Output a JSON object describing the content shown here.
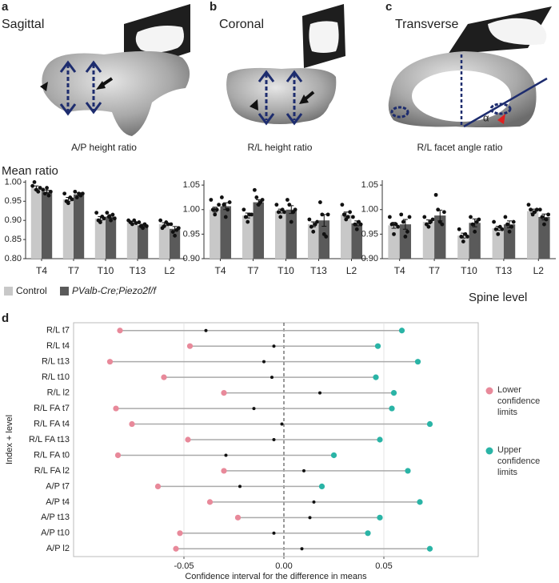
{
  "chart_data": [
    {
      "type": "bar",
      "panel_label": "a",
      "view": "Sagittal",
      "caption": "A/P height ratio",
      "ylabel": "Mean ratio",
      "categories": [
        "T4",
        "T7",
        "T10",
        "T13",
        "L2"
      ],
      "ylim": [
        0.8,
        1.005
      ],
      "yticks": [
        {
          "value": 0.8,
          "label": "0.80"
        },
        {
          "value": 0.85,
          "label": "0.85"
        },
        {
          "value": 0.9,
          "label": "0.90"
        },
        {
          "value": 0.95,
          "label": "0.95"
        },
        {
          "value": 1.0,
          "label": "1.00"
        }
      ],
      "series": [
        {
          "name": "Control",
          "color": "#c8c8c8",
          "values": [
            0.985,
            0.955,
            0.905,
            0.895,
            0.89
          ],
          "errors": [
            0.005,
            0.005,
            0.005,
            0.003,
            0.004
          ],
          "points": [
            [
              0.99,
              1.0,
              0.98,
              0.975,
              0.985
            ],
            [
              0.97,
              0.95,
              0.945,
              0.96,
              0.955
            ],
            [
              0.92,
              0.9,
              0.895,
              0.91,
              0.905
            ],
            [
              0.9,
              0.895,
              0.89,
              0.9,
              0.893
            ],
            [
              0.9,
              0.88,
              0.885,
              0.895,
              0.89
            ]
          ]
        },
        {
          "name": "PValb-Cre;Piezo2f/f",
          "color": "#5a5a5a",
          "values": [
            0.975,
            0.968,
            0.91,
            0.887,
            0.878
          ],
          "errors": [
            0.004,
            0.004,
            0.005,
            0.003,
            0.006
          ],
          "points": [
            [
              0.98,
              0.97,
              0.985,
              0.965,
              0.975
            ],
            [
              0.975,
              0.96,
              0.97,
              0.965,
              0.97
            ],
            [
              0.92,
              0.91,
              0.9,
              0.915,
              0.905
            ],
            [
              0.895,
              0.885,
              0.88,
              0.89,
              0.885
            ],
            [
              0.89,
              0.87,
              0.86,
              0.875,
              0.88
            ]
          ]
        }
      ]
    },
    {
      "type": "bar",
      "panel_label": "b",
      "view": "Coronal",
      "caption": "R/L height ratio",
      "categories": [
        "T4",
        "T7",
        "T10",
        "T13",
        "L2"
      ],
      "ylim": [
        0.9,
        1.06
      ],
      "yticks": [
        {
          "value": 0.9,
          "label": "0.90"
        },
        {
          "value": 0.95,
          "label": "0.95"
        },
        {
          "value": 1.0,
          "label": "1.00"
        },
        {
          "value": 1.05,
          "label": "1.05"
        }
      ],
      "series": [
        {
          "color": "#c8c8c8",
          "values": [
            1.0,
            0.988,
            0.997,
            0.97,
            0.99
          ],
          "errors": [
            0.005,
            0.005,
            0.004,
            0.005,
            0.005
          ],
          "points": [
            [
              1.02,
              1.0,
              0.99,
              1.0,
              1.01
            ],
            [
              1.0,
              0.985,
              0.975,
              0.99,
              0.99
            ],
            [
              1.01,
              0.995,
              0.985,
              1.0,
              0.995
            ],
            [
              0.98,
              0.965,
              0.955,
              0.97,
              0.975
            ],
            [
              1.01,
              0.99,
              0.98,
              0.985,
              0.995
            ]
          ]
        },
        {
          "color": "#5a5a5a",
          "values": [
            1.007,
            1.015,
            1.0,
            0.978,
            0.972
          ],
          "errors": [
            0.007,
            0.005,
            0.008,
            0.012,
            0.005
          ],
          "points": [
            [
              1.025,
              1.01,
              0.985,
              1.0,
              1.015
            ],
            [
              1.04,
              1.025,
              1.01,
              1.015,
              1.02
            ],
            [
              1.02,
              1.01,
              0.975,
              0.995,
              1.0
            ],
            [
              1.015,
              0.99,
              0.95,
              0.945,
              0.99
            ],
            [
              0.985,
              0.97,
              0.96,
              0.975,
              0.97
            ]
          ]
        }
      ]
    },
    {
      "type": "bar",
      "panel_label": "c",
      "view": "Transverse",
      "caption": "R/L facet angle ratio",
      "xlabel": "Spine level",
      "categories": [
        "T4",
        "T7",
        "T10",
        "T13",
        "L2"
      ],
      "ylim": [
        0.9,
        1.06
      ],
      "yticks": [
        {
          "value": 0.9,
          "label": "0.90"
        },
        {
          "value": 0.95,
          "label": "0.95"
        },
        {
          "value": 1.0,
          "label": "1.00"
        },
        {
          "value": 1.05,
          "label": "1.05"
        }
      ],
      "series": [
        {
          "color": "#c8c8c8",
          "values": [
            0.968,
            0.975,
            0.947,
            0.962,
            0.997
          ],
          "errors": [
            0.006,
            0.004,
            0.005,
            0.004,
            0.004
          ],
          "points": [
            [
              0.985,
              0.97,
              0.95,
              0.97,
              0.965
            ],
            [
              0.985,
              0.97,
              0.965,
              0.975,
              0.98
            ],
            [
              0.96,
              0.945,
              0.935,
              0.95,
              0.945
            ],
            [
              0.975,
              0.96,
              0.95,
              0.965,
              0.96
            ],
            [
              1.01,
              1.0,
              0.99,
              0.995,
              1.0
            ]
          ]
        },
        {
          "color": "#5a5a5a",
          "values": [
            0.97,
            0.988,
            0.973,
            0.97,
            0.985
          ],
          "errors": [
            0.01,
            0.011,
            0.008,
            0.007,
            0.006
          ],
          "points": [
            [
              0.99,
              0.975,
              0.945,
              0.955,
              0.985
            ],
            [
              1.03,
              1.0,
              0.975,
              0.97,
              0.995
            ],
            [
              0.985,
              0.97,
              0.955,
              0.975,
              0.98
            ],
            [
              0.985,
              0.97,
              0.955,
              0.965,
              0.975
            ],
            [
              1.0,
              0.985,
              0.97,
              0.98,
              0.99
            ]
          ]
        }
      ]
    },
    {
      "type": "dumbbell",
      "panel_label": "d",
      "xlabel": "Confidence interval for the difference in means",
      "ylabel": "Index + level",
      "categories": [
        "R/L t7",
        "R/L t4",
        "R/L t13",
        "R/L t10",
        "R/L l2",
        "R/L FA t7",
        "R/L FA t4",
        "R/L FA t13",
        "R/L FA t0",
        "R/L FA l2",
        "A/P t7",
        "A/P t4",
        "A/P t13",
        "A/P t10",
        "A/P l2"
      ],
      "xlim": [
        -0.1052,
        0.0972
      ],
      "xticks": [
        {
          "value": -0.05,
          "label": "-0.05"
        },
        {
          "value": 0,
          "label": "0.00"
        },
        {
          "value": 0.05,
          "label": "0.05"
        }
      ],
      "grid": true,
      "series": [
        {
          "name": "Lower confidence limits",
          "color": "#e8899a",
          "values": [
            -0.082,
            -0.047,
            -0.087,
            -0.06,
            -0.03,
            -0.084,
            -0.076,
            -0.048,
            -0.083,
            -0.03,
            -0.063,
            -0.037,
            -0.023,
            -0.052,
            -0.054
          ]
        },
        {
          "color": "#111111",
          "values": [
            -0.039,
            -0.005,
            -0.01,
            -0.006,
            0.018,
            -0.015,
            -0.001,
            -0.005,
            -0.029,
            0.01,
            -0.022,
            0.015,
            0.013,
            -0.005,
            0.009
          ]
        },
        {
          "name": "Upper confidence limits",
          "color": "#2ab4a6",
          "values": [
            0.059,
            0.047,
            0.067,
            0.046,
            0.055,
            0.054,
            0.073,
            0.048,
            0.025,
            0.062,
            0.019,
            0.068,
            0.048,
            0.042,
            0.073
          ]
        }
      ]
    }
  ]
}
